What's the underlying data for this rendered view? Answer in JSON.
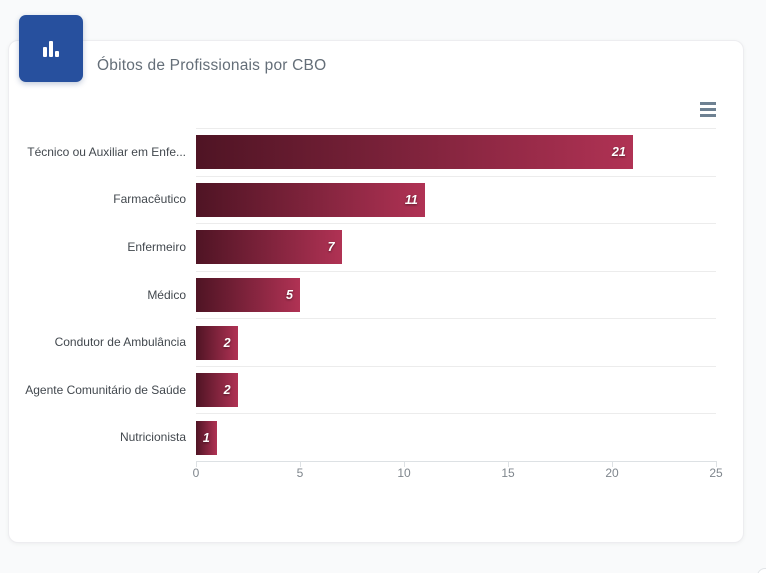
{
  "page": {
    "background_color": "#f9fafb"
  },
  "card": {
    "background_color": "#ffffff",
    "border_color": "#ededf0"
  },
  "header": {
    "badge_icon": "bar-chart-icon",
    "badge_color": "#27509e"
  },
  "toolbar": {
    "menu_icon": "hamburger-menu-icon",
    "menu_icon_color": "#6e8192"
  },
  "chart_data": {
    "type": "bar",
    "orientation": "horizontal",
    "title": "Óbitos de Profissionais por CBO",
    "categories": [
      "Técnico ou Auxiliar em Enfe...",
      "Farmacêutico",
      "Enfermeiro",
      "Médico",
      "Condutor de Ambulância",
      "Agente Comunitário de Saúde",
      "Nutricionista"
    ],
    "values": [
      21,
      11,
      7,
      5,
      2,
      2,
      1
    ],
    "data_labels": [
      "21",
      "11",
      "7",
      "5",
      "2",
      "2",
      "1"
    ],
    "xlabel": "",
    "ylabel": "",
    "xlim": [
      0,
      25
    ],
    "x_ticks": [
      "0",
      "5",
      "10",
      "15",
      "20",
      "25"
    ],
    "grid": "horizontal-lines",
    "legend": "none",
    "bar_gradient_from": "#4f1424",
    "bar_gradient_to": "#b03254",
    "value_label_color": "#ffffff",
    "category_label_color": "#42484e",
    "tick_label_color": "#7f868d"
  }
}
